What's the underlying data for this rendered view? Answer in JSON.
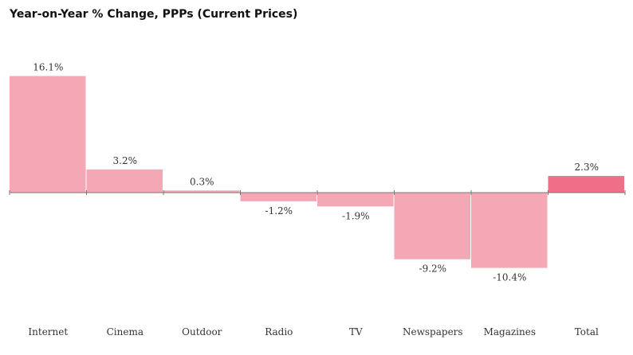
{
  "chart_data": {
    "type": "bar",
    "title": "Year-on-Year % Change, PPPs (Current Prices)",
    "categories": [
      "Internet",
      "Cinema",
      "Outdoor",
      "Radio",
      "TV",
      "Newspapers",
      "Magazines",
      "Total"
    ],
    "values": [
      16.1,
      3.2,
      0.3,
      -1.2,
      -1.9,
      -9.2,
      -10.4,
      2.3
    ],
    "value_labels": [
      "16.1%",
      "3.2%",
      "0.3%",
      "-1.2%",
      "-1.9%",
      "-9.2%",
      "-10.4%",
      "2.3%"
    ],
    "highlight_category": "Total",
    "colors": {
      "bar": "#f4a7b5",
      "highlight": "#ef6e88",
      "axis": "#777777"
    },
    "ylim": [
      -16,
      20
    ],
    "grid": false,
    "xlabel": "",
    "ylabel": ""
  }
}
